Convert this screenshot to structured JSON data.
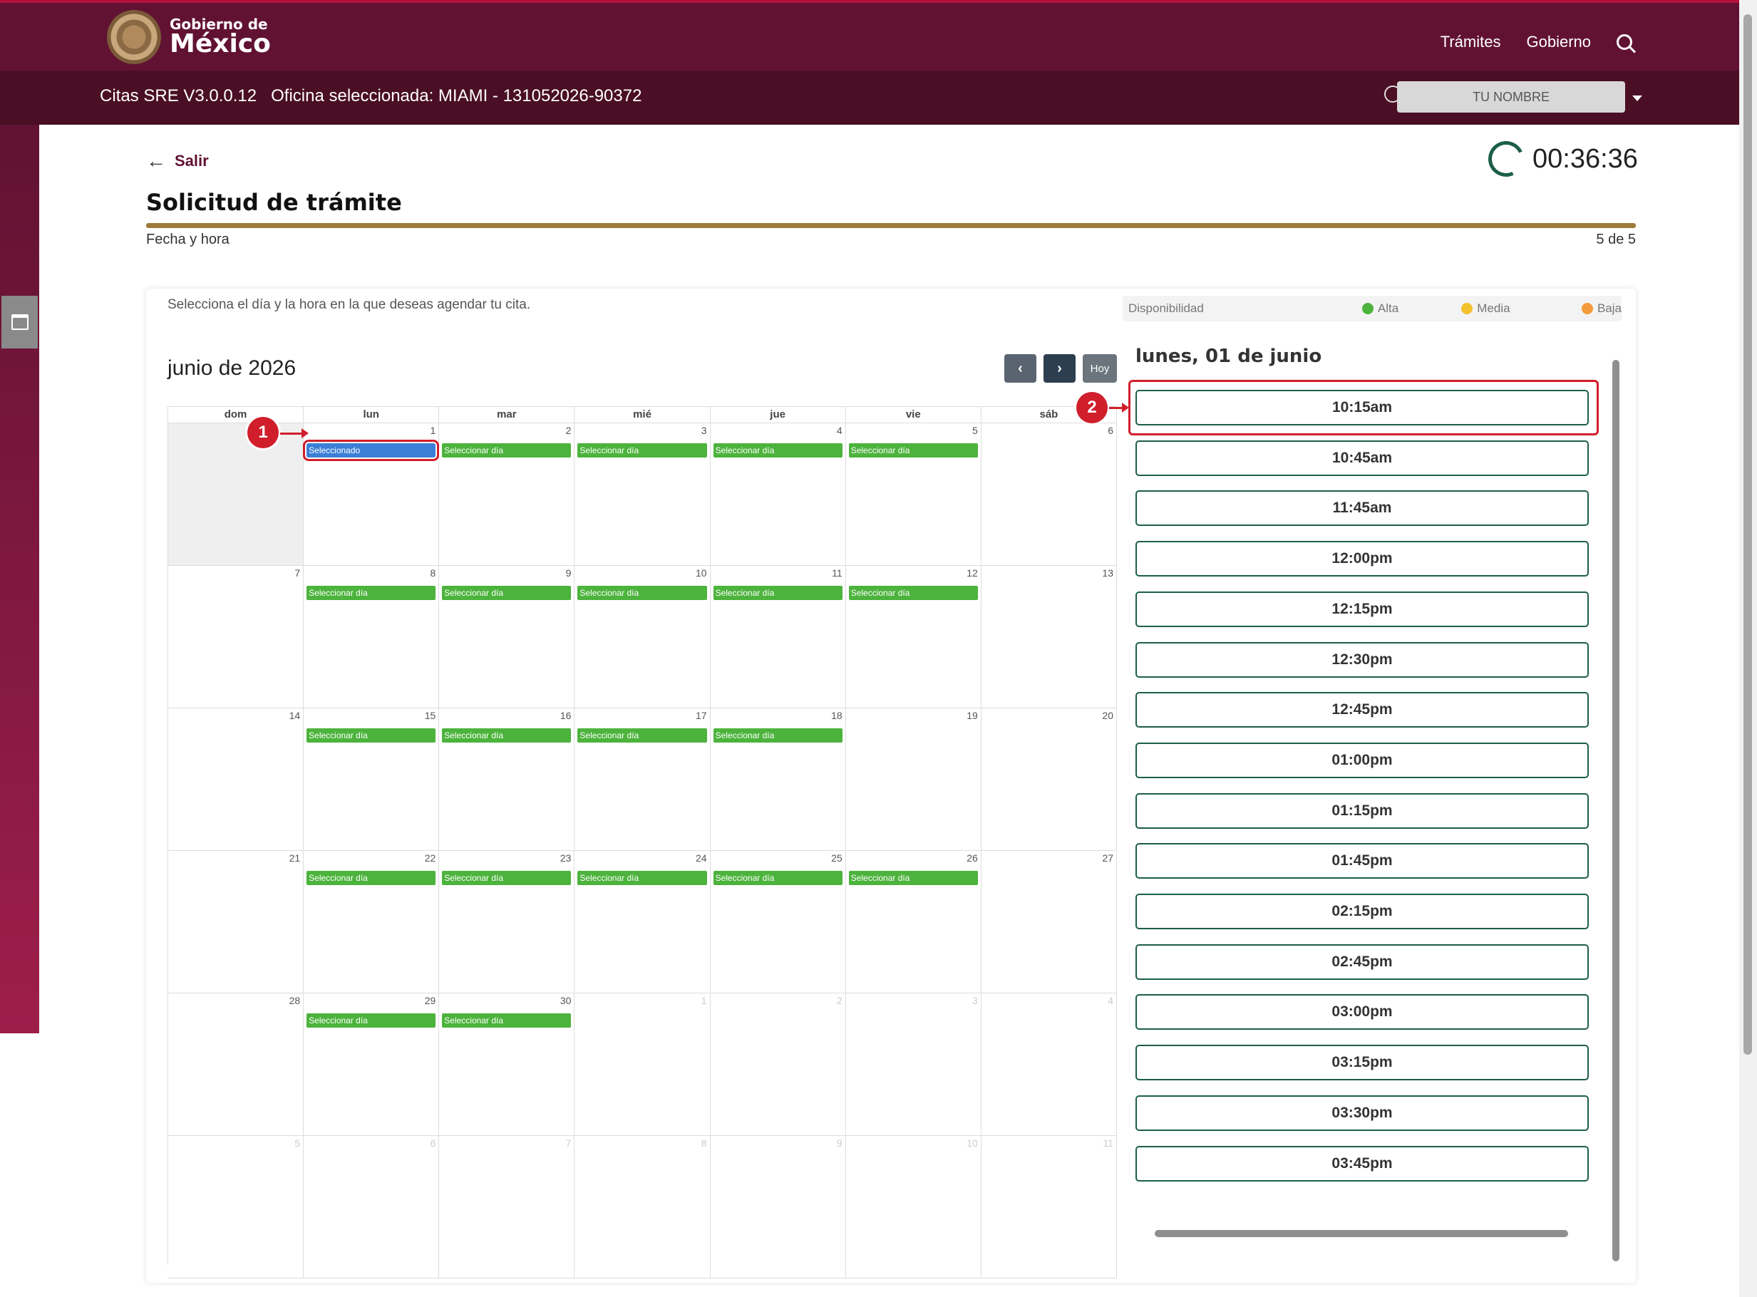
{
  "header": {
    "logo_line1": "Gobierno de",
    "logo_line2": "México",
    "nav": [
      "Trámites",
      "Gobierno"
    ]
  },
  "subbar": {
    "app_version": "Citas SRE V3.0.0.12",
    "office": "Oficina seleccionada: MIAMI - 131052026-90372",
    "user_name": "TU NOMBRE"
  },
  "page": {
    "back_label": "Salir",
    "timer": "00:36:36",
    "title": "Solicitud de trámite",
    "step_label": "Fecha y hora",
    "step_count": "5 de 5",
    "progress": 1.0
  },
  "card": {
    "instructions": "Selecciona el día y la hora en la que deseas agendar tu cita.",
    "legend": {
      "label": "Disponibilidad",
      "items": [
        {
          "label": "Alta",
          "color": "#4cb33c"
        },
        {
          "label": "Media",
          "color": "#f2c12e"
        },
        {
          "label": "Baja",
          "color": "#f59a3a"
        }
      ]
    }
  },
  "calendar": {
    "month_title": "junio de 2026",
    "today_label": "Hoy",
    "weekdays": [
      "dom",
      "lun",
      "mar",
      "mié",
      "jue",
      "vie",
      "sáb"
    ],
    "weeks": [
      [
        {
          "num": "",
          "state": "past"
        },
        {
          "num": "1",
          "event": "Seleccionado",
          "selected": true
        },
        {
          "num": "2",
          "event": "Seleccionar día"
        },
        {
          "num": "3",
          "event": "Seleccionar día"
        },
        {
          "num": "4",
          "event": "Seleccionar día"
        },
        {
          "num": "5",
          "event": "Seleccionar día"
        },
        {
          "num": "6"
        }
      ],
      [
        {
          "num": "7"
        },
        {
          "num": "8",
          "event": "Seleccionar día"
        },
        {
          "num": "9",
          "event": "Seleccionar día"
        },
        {
          "num": "10",
          "event": "Seleccionar día"
        },
        {
          "num": "11",
          "event": "Seleccionar día"
        },
        {
          "num": "12",
          "event": "Seleccionar día"
        },
        {
          "num": "13"
        }
      ],
      [
        {
          "num": "14"
        },
        {
          "num": "15",
          "event": "Seleccionar día"
        },
        {
          "num": "16",
          "event": "Seleccionar día"
        },
        {
          "num": "17",
          "event": "Seleccionar día"
        },
        {
          "num": "18",
          "event": "Seleccionar día"
        },
        {
          "num": "19"
        },
        {
          "num": "20"
        }
      ],
      [
        {
          "num": "21"
        },
        {
          "num": "22",
          "event": "Seleccionar día"
        },
        {
          "num": "23",
          "event": "Seleccionar día"
        },
        {
          "num": "24",
          "event": "Seleccionar día"
        },
        {
          "num": "25",
          "event": "Seleccionar día"
        },
        {
          "num": "26",
          "event": "Seleccionar día"
        },
        {
          "num": "27"
        }
      ],
      [
        {
          "num": "28"
        },
        {
          "num": "29",
          "event": "Seleccionar día"
        },
        {
          "num": "30",
          "event": "Seleccionar día"
        },
        {
          "num": "1",
          "state": "other"
        },
        {
          "num": "2",
          "state": "other"
        },
        {
          "num": "3",
          "state": "other"
        },
        {
          "num": "4",
          "state": "other"
        }
      ],
      [
        {
          "num": "5",
          "state": "other"
        },
        {
          "num": "6",
          "state": "other"
        },
        {
          "num": "7",
          "state": "other"
        },
        {
          "num": "8",
          "state": "other"
        },
        {
          "num": "9",
          "state": "other"
        },
        {
          "num": "10",
          "state": "other"
        },
        {
          "num": "11",
          "state": "other"
        }
      ]
    ]
  },
  "slots": {
    "day_title": "lunes, 01 de junio",
    "times": [
      "10:15am",
      "10:45am",
      "11:45am",
      "12:00pm",
      "12:15pm",
      "12:30pm",
      "12:45pm",
      "01:00pm",
      "01:15pm",
      "01:45pm",
      "02:15pm",
      "02:45pm",
      "03:00pm",
      "03:15pm",
      "03:30pm",
      "03:45pm"
    ]
  },
  "annotations": [
    "1",
    "2"
  ]
}
